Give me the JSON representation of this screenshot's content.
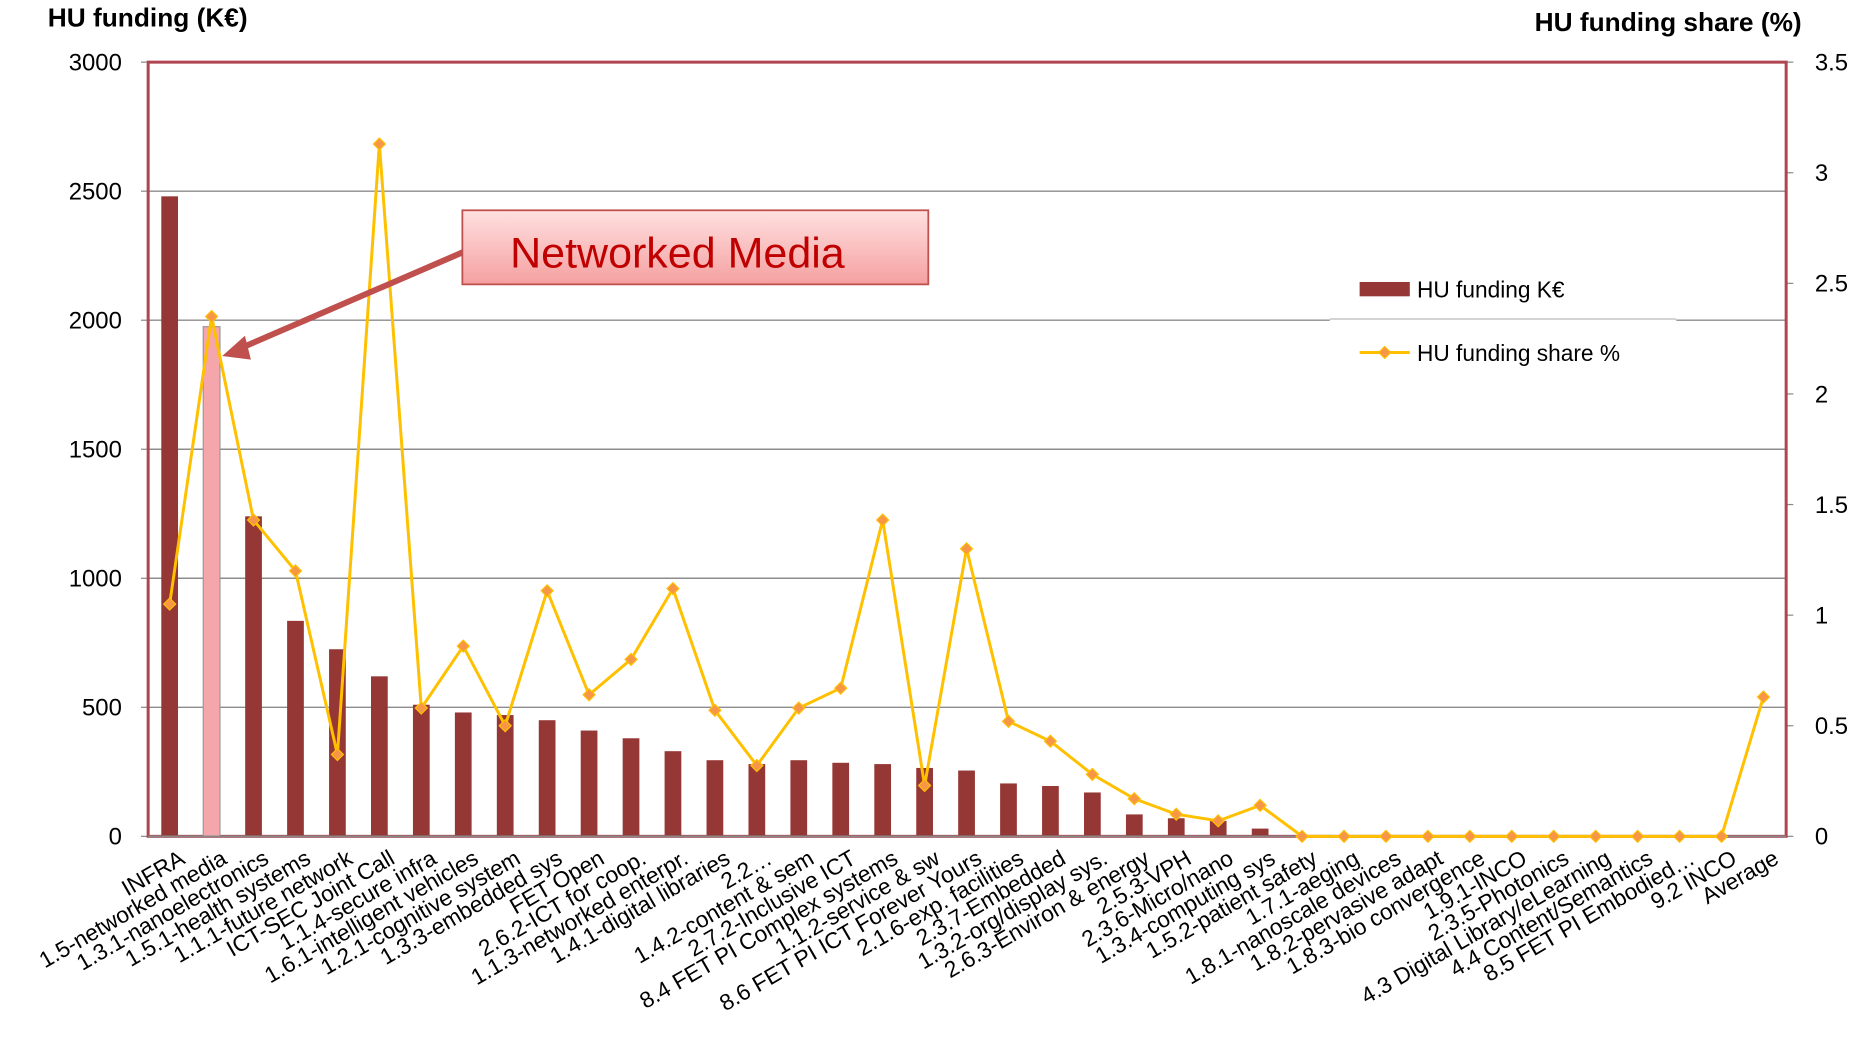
{
  "chart_data": {
    "type": "bar_line",
    "y_axis_title": "HU funding (K€)",
    "y2_axis_title": "HU funding share (%)",
    "categories": [
      "INFRA",
      "1.5-networked media",
      "1.3.1-nanoelectronics",
      "1.5.1-health systems",
      "1.1.1-future network",
      "ICT-SEC Joint Call",
      "1.1.4-secure infra",
      "1.6.1-intelligent vehicles",
      "1.2.1-cognitive system",
      "1.3.3-embedded sys",
      "FET Open",
      "2.6.2-ICT for coop.",
      "1.1.3-networked enterpr.",
      "1.4.1-digital libraries",
      "2.2…",
      "1.4.2-content & sem",
      "2.7.2-Inclusive ICT",
      "8.4 FET PI Complex systems",
      "1.1.2-service & sw",
      "8.6 FET PI ICT Forever Yours",
      "2.1.6-exp. facilities",
      "2.3.7-Embedded",
      "1.3.2-org/display sys.",
      "2.6.3-Environ & energy",
      "2.5.3-VPH",
      "2.3.6-Micro/nano",
      "1.3.4-computing sys",
      "1.5.2-patient safety",
      "1.7.1-aeging",
      "1.8.1-nanoscale devices",
      "1.8.2-pervasive adapt",
      "1.8.3-bio convergence",
      "1.9.1-INCO",
      "2.3.5-Photonics",
      "4.3 Digital Library/eLearning",
      "4.4 Content/Semantics",
      "8.5 FET PI Embodied…",
      "9.2 INCO",
      "Average"
    ],
    "series": [
      {
        "name": "HU funding K€",
        "type": "bar",
        "color": "#953735",
        "highlight": 1,
        "highlight_color": "#f4a6ab",
        "values": [
          2480,
          1975,
          1240,
          835,
          725,
          620,
          510,
          480,
          470,
          450,
          410,
          380,
          330,
          295,
          280,
          295,
          285,
          280,
          265,
          255,
          205,
          195,
          170,
          85,
          70,
          60,
          30,
          0,
          0,
          0,
          0,
          0,
          0,
          0,
          0,
          0,
          0,
          0,
          0
        ]
      },
      {
        "name": "HU funding share %",
        "type": "line",
        "axis": "y2",
        "color": "#ffc000",
        "marker_color": "#f79646",
        "values": [
          1.05,
          2.35,
          1.43,
          1.2,
          0.37,
          3.13,
          0.58,
          0.86,
          0.5,
          1.11,
          0.64,
          0.8,
          1.12,
          0.57,
          0.32,
          0.58,
          0.67,
          1.43,
          0.23,
          1.3,
          0.52,
          0.43,
          0.28,
          0.17,
          0.1,
          0.07,
          0.14,
          0,
          0,
          0,
          0,
          0,
          0,
          0,
          0,
          0,
          0,
          0,
          0.63
        ]
      }
    ],
    "ylim": [
      0,
      3000
    ],
    "yticks": [
      0,
      500,
      1000,
      1500,
      2000,
      2500,
      3000
    ],
    "y2lim": [
      0,
      3.5
    ],
    "y2ticks": [
      0,
      0.5,
      1,
      1.5,
      2,
      2.5,
      3,
      3.5
    ],
    "grid": true,
    "legend": "right",
    "annotation": "Networked Media"
  }
}
